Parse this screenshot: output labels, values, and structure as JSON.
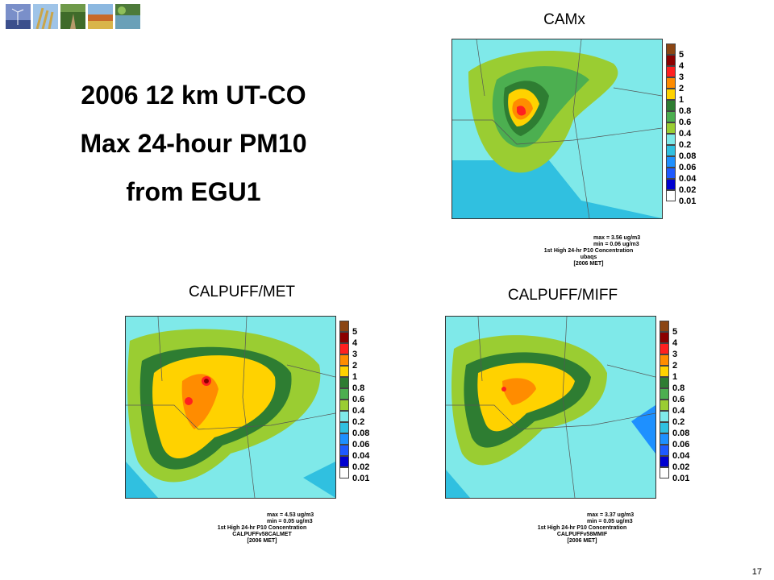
{
  "slide": {
    "title_lines": [
      "2006 12 km UT-CO",
      "Max 24-hour PM10",
      "from EGU1"
    ],
    "page_number": "17",
    "thumbnails": [
      "wind-turbines-thumb",
      "wheat-thumb",
      "forest-path-thumb",
      "autumn-field-thumb",
      "lake-thumb"
    ]
  },
  "chart_data": [
    {
      "type": "heatmap",
      "title": "CAMx",
      "legend_levels": [
        "5",
        "4",
        "3",
        "2",
        "1",
        "0.8",
        "0.6",
        "0.4",
        "0.2",
        "0.08",
        "0.06",
        "0.04",
        "0.02",
        "0.01"
      ],
      "legend_colors": [
        "#8b4513",
        "#8b0000",
        "#ff2020",
        "#ff8c00",
        "#ffd200",
        "#2e7d32",
        "#4caf50",
        "#9acd32",
        "#7fe9e9",
        "#30c0e0",
        "#1e90ff",
        "#1e5aff",
        "#0000d0",
        "#ffffff"
      ],
      "max_text": "max = 3.56 ug/m3",
      "min_text": "min = 0.06 ug/m3",
      "caption_line1": "1st High 24-hr P10 Concentration",
      "caption_line2": "ubaqs",
      "caption_line3": "[2006 MET]"
    },
    {
      "type": "heatmap",
      "title": "CALPUFF/MET",
      "legend_levels": [
        "5",
        "4",
        "3",
        "2",
        "1",
        "0.8",
        "0.6",
        "0.4",
        "0.2",
        "0.08",
        "0.06",
        "0.04",
        "0.02",
        "0.01"
      ],
      "legend_colors": [
        "#8b4513",
        "#8b0000",
        "#ff2020",
        "#ff8c00",
        "#ffd200",
        "#2e7d32",
        "#4caf50",
        "#9acd32",
        "#7fe9e9",
        "#30c0e0",
        "#1e90ff",
        "#1e5aff",
        "#0000d0",
        "#ffffff"
      ],
      "max_text": "max = 4.53 ug/m3",
      "min_text": "min = 0.05 ug/m3",
      "caption_line1": "1st High 24-hr P10 Concentration",
      "caption_line2": "CALPUFFv58CALMET",
      "caption_line3": "[2006 MET]"
    },
    {
      "type": "heatmap",
      "title": "CALPUFF/MIFF",
      "legend_levels": [
        "5",
        "4",
        "3",
        "2",
        "1",
        "0.8",
        "0.6",
        "0.4",
        "0.2",
        "0.08",
        "0.06",
        "0.04",
        "0.02",
        "0.01"
      ],
      "legend_colors": [
        "#8b4513",
        "#8b0000",
        "#ff2020",
        "#ff8c00",
        "#ffd200",
        "#2e7d32",
        "#4caf50",
        "#9acd32",
        "#7fe9e9",
        "#30c0e0",
        "#1e90ff",
        "#1e5aff",
        "#0000d0",
        "#ffffff"
      ],
      "max_text": "max = 3.37 ug/m3",
      "min_text": "min = 0.05 ug/m3",
      "caption_line1": "1st High 24-hr P10 Concentration",
      "caption_line2": "CALPUFFv58MMIF",
      "caption_line3": "[2006 MET]"
    }
  ]
}
